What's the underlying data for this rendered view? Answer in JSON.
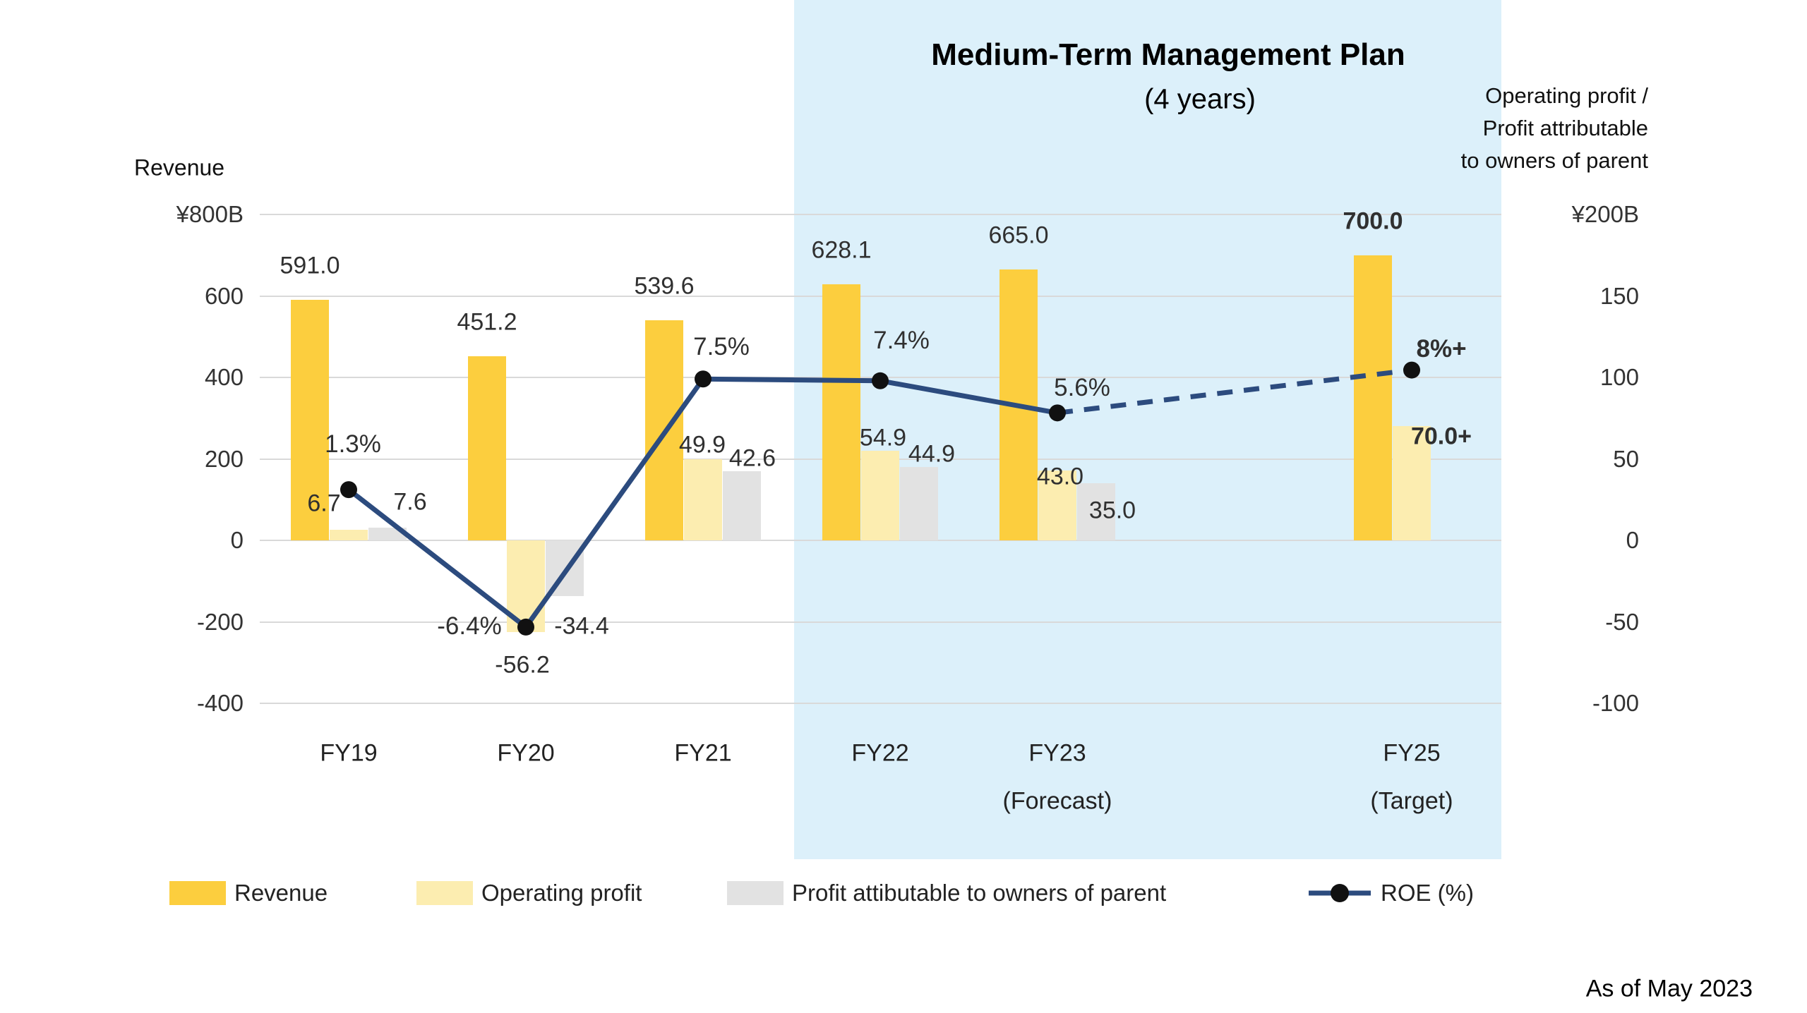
{
  "plan_region": {
    "title": "Medium-Term Management Plan",
    "subtitle": "(4 years)",
    "covers": [
      "FY22",
      "FY23",
      "FY25"
    ]
  },
  "right_axis_note_lines": [
    "Operating profit /",
    "Profit attributable",
    "to owners of parent"
  ],
  "footnote": "As of May 2023",
  "colors": {
    "revenue": "#FCCE3E",
    "operating_profit": "#FCEDB0",
    "profit_attributable": "#E2E2E2",
    "roe_line": "#2C4B7E",
    "marker": "#111111",
    "plan_region_bg": "#DCF0FA",
    "gridline": "#D9D9D9"
  },
  "legend": {
    "items": [
      {
        "key": "revenue",
        "label": "Revenue",
        "swatch": "revenue"
      },
      {
        "key": "operating_profit",
        "label": "Operating profit",
        "swatch": "operating_profit"
      },
      {
        "key": "profit_attributable",
        "label": "Profit attibutable to owners of parent",
        "swatch": "profit_attributable"
      },
      {
        "key": "roe",
        "label": "ROE (%)",
        "swatch": "line-marker"
      }
    ]
  },
  "chart_data": {
    "type": "combo-bar-line",
    "categories": [
      {
        "label": "FY19",
        "sublabel": null
      },
      {
        "label": "FY20",
        "sublabel": null
      },
      {
        "label": "FY21",
        "sublabel": null
      },
      {
        "label": "FY22",
        "sublabel": null
      },
      {
        "label": "FY23",
        "sublabel": "(Forecast)"
      },
      {
        "label": "FY25",
        "sublabel": "(Target)"
      }
    ],
    "left_axis": {
      "title": "Revenue",
      "tick_values": [
        800,
        600,
        400,
        200,
        0,
        -200,
        -400
      ],
      "tick_labels": [
        "¥800B",
        "600",
        "400",
        "200",
        "0",
        "-200",
        "-400"
      ]
    },
    "right_axis": {
      "tick_values": [
        200,
        150,
        100,
        50,
        0,
        -50,
        -100
      ],
      "tick_labels": [
        "¥200B",
        "150",
        "100",
        "50",
        "0",
        "-50",
        "-100"
      ]
    },
    "series": [
      {
        "name": "Revenue",
        "type": "bar",
        "axis": "left",
        "color_key": "revenue",
        "values": [
          591.0,
          451.2,
          539.6,
          628.1,
          665.0,
          700.0
        ],
        "labels": [
          "591.0",
          "451.2",
          "539.6",
          "628.1",
          "665.0",
          "700.0"
        ],
        "bold": [
          false,
          false,
          false,
          false,
          false,
          true
        ]
      },
      {
        "name": "Operating profit",
        "type": "bar",
        "axis": "right",
        "color_key": "operating_profit",
        "values": [
          6.7,
          -56.2,
          49.9,
          54.9,
          43.0,
          70.0
        ],
        "labels": [
          "6.7",
          "-56.2",
          "49.9",
          "54.9",
          "43.0",
          "70.0+"
        ],
        "bold": [
          false,
          false,
          false,
          false,
          false,
          true
        ]
      },
      {
        "name": "Profit attibutable to owners of parent",
        "type": "bar",
        "axis": "right",
        "color_key": "profit_attributable",
        "values": [
          7.6,
          -34.4,
          42.6,
          44.9,
          35.0,
          null
        ],
        "labels": [
          "7.6",
          "-34.4",
          "42.6",
          "44.9",
          "35.0",
          null
        ],
        "bold": [
          false,
          false,
          false,
          false,
          false,
          false
        ]
      },
      {
        "name": "ROE (%)",
        "type": "line",
        "axis": "hidden-percent",
        "color_key": "roe_line",
        "values": [
          1.3,
          -6.4,
          7.5,
          7.4,
          5.6,
          8.0
        ],
        "labels": [
          "1.3%",
          "-6.4%",
          "7.5%",
          "7.4%",
          "5.6%",
          "8%+"
        ],
        "bold": [
          false,
          false,
          false,
          false,
          false,
          true
        ],
        "dashed_from_index": 4
      }
    ],
    "layout_hints": {
      "legend_position": "bottom",
      "grid": true,
      "left_axis_range": [
        -400,
        800
      ],
      "right_axis_range": [
        -100,
        200
      ],
      "plan_region_from_category_index": 3
    }
  }
}
